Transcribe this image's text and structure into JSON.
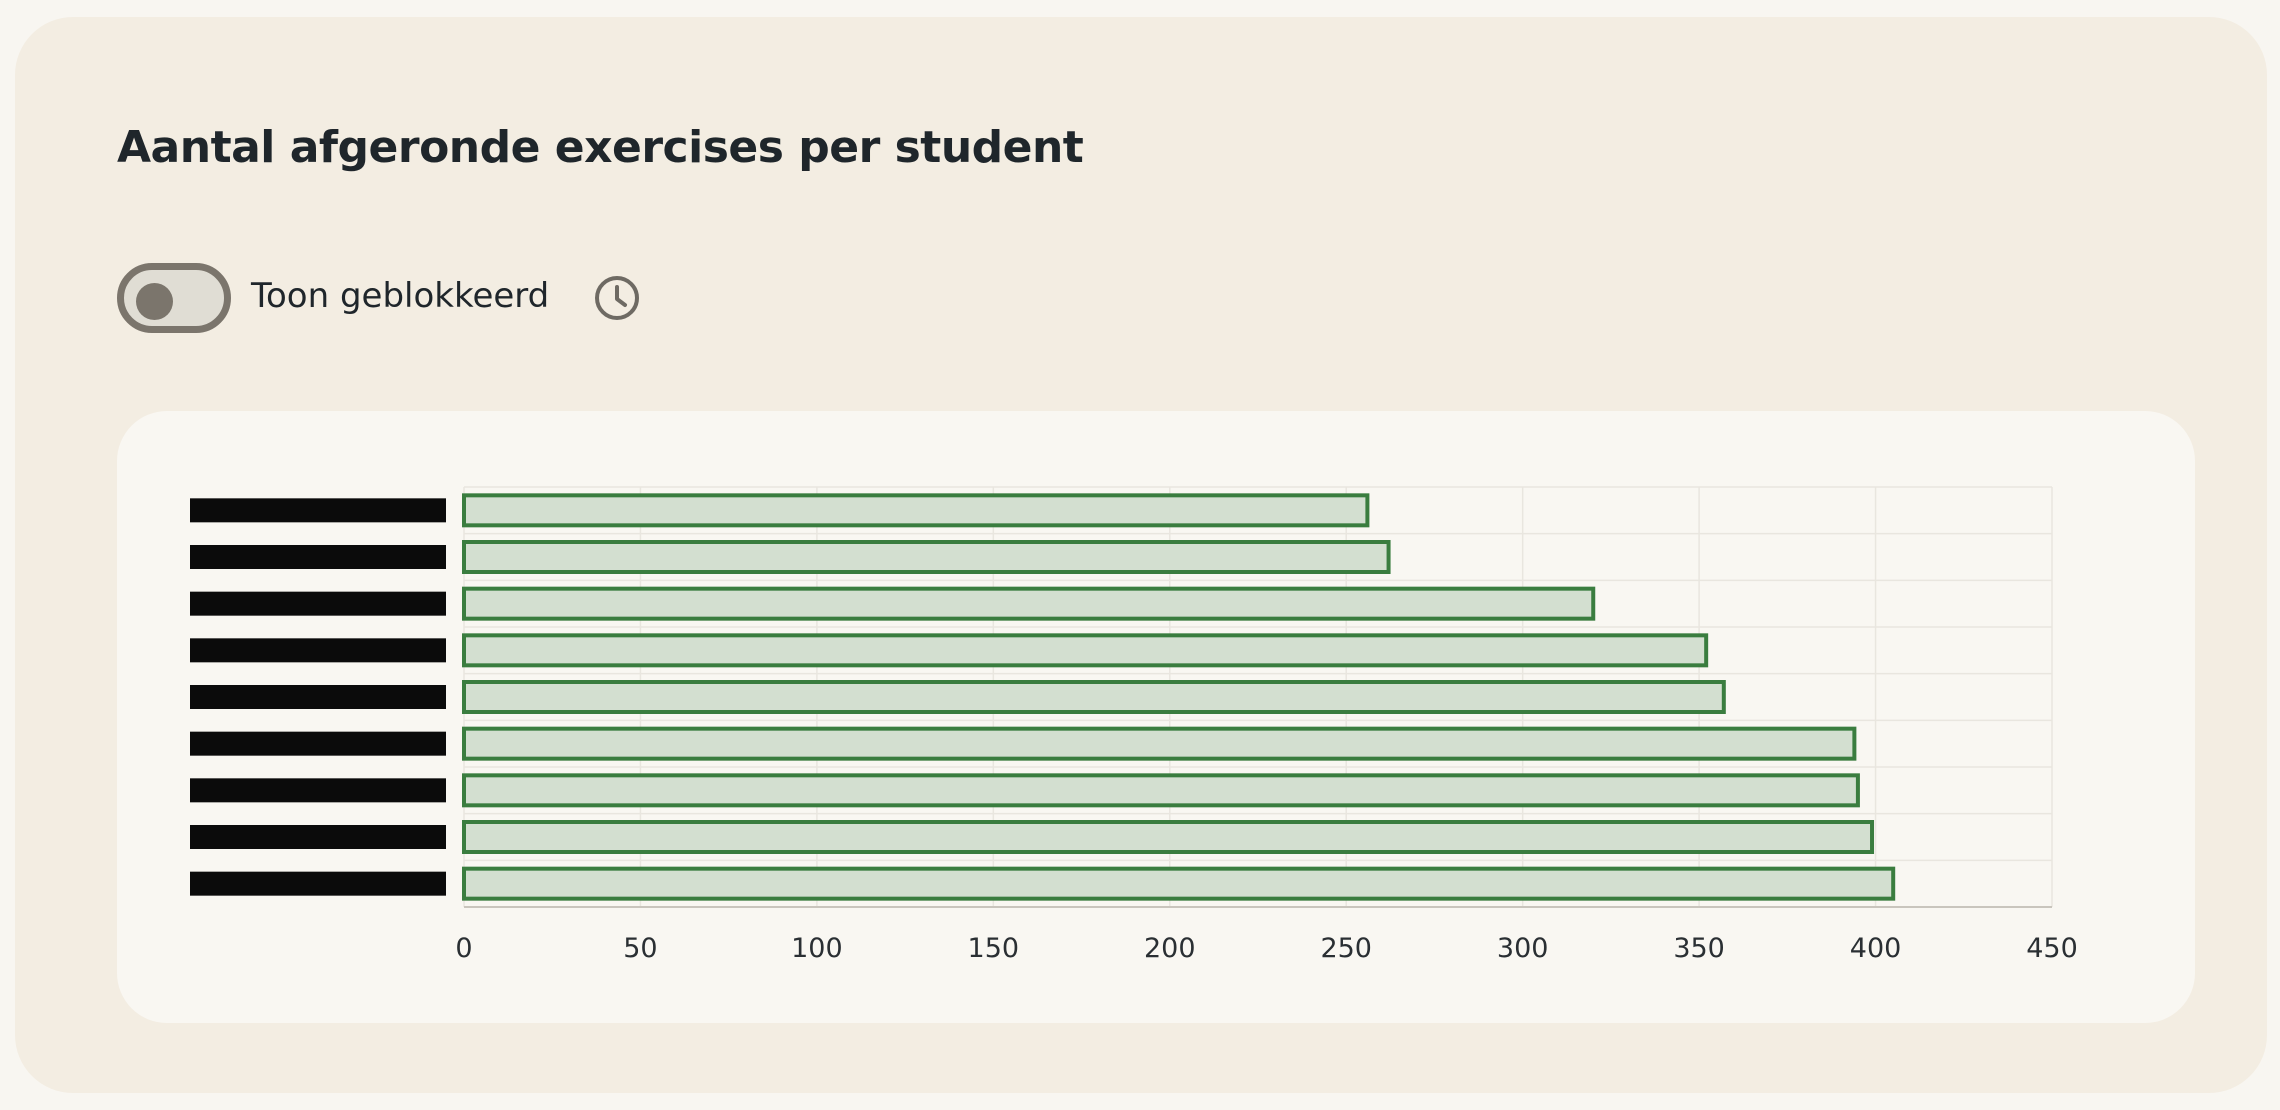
{
  "page": {
    "title": "Aantal afgeronde exercises per student"
  },
  "toolbar": {
    "toggle_label": "Toon geblokkeerd",
    "toggle_on": false,
    "history_icon": "clock-icon"
  },
  "colors": {
    "bar_fill": "#d3dfd0",
    "bar_stroke": "#3a7d3f",
    "redaction": "#0b0b0b"
  },
  "chart_data": {
    "type": "bar",
    "orientation": "horizontal",
    "categories": [
      "",
      "",
      "",
      "",
      "",
      "",
      "",
      "",
      ""
    ],
    "categories_redacted": true,
    "values": [
      256,
      262,
      320,
      352,
      357,
      394,
      395,
      399,
      405
    ],
    "xlim": [
      0,
      450
    ],
    "xticks": [
      0,
      50,
      100,
      150,
      200,
      250,
      300,
      350,
      400,
      450
    ],
    "grid": true,
    "legend": "none"
  }
}
